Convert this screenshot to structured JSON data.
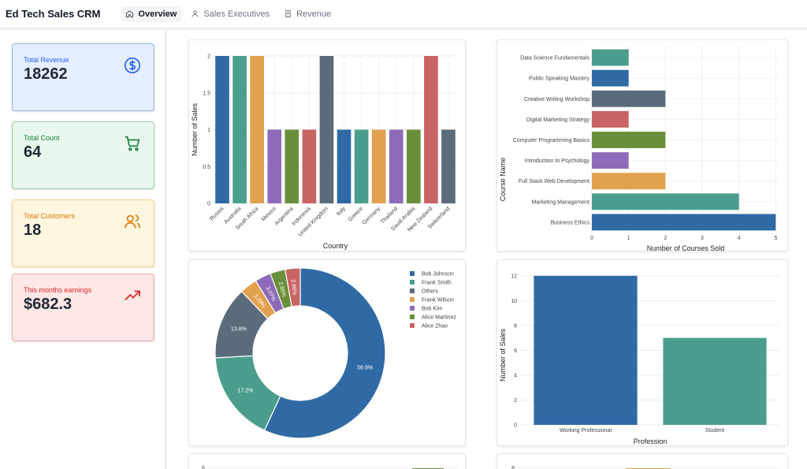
{
  "header": {
    "title": "Ed Tech Sales CRM",
    "tabs": [
      {
        "label": "Overview",
        "icon": "home-icon",
        "active": true
      },
      {
        "label": "Sales Executives",
        "icon": "user-icon",
        "active": false
      },
      {
        "label": "Revenue",
        "icon": "receipt-icon",
        "active": false
      }
    ]
  },
  "kpis": [
    {
      "label": "Total Revenue",
      "value": "18262",
      "icon": "dollar-icon",
      "accent": "#2563eb"
    },
    {
      "label": "Total Count",
      "value": "64",
      "icon": "cart-icon",
      "accent": "#15803d"
    },
    {
      "label": "Total Customers",
      "value": "18",
      "icon": "users-icon",
      "accent": "#d97706"
    },
    {
      "label": "This months earnings",
      "value": "$682.3",
      "icon": "trending-up-icon",
      "accent": "#dc2626"
    }
  ],
  "chart_data": [
    {
      "type": "bar",
      "categories": [
        "Russia",
        "Australia",
        "South Africa",
        "Mexico",
        "Argentina",
        "Indonesia",
        "United Kingdom",
        "Italy",
        "Greece",
        "Germany",
        "Thailand",
        "Saudi Arabia",
        "New Zealand",
        "Switzerland"
      ],
      "values": [
        2,
        2,
        2,
        1,
        1,
        1,
        2,
        1,
        1,
        1,
        1,
        1,
        2,
        1
      ],
      "colors": [
        "#2f6aa5",
        "#4b9e8e",
        "#e2a14f",
        "#8e6bb8",
        "#6a8f3a",
        "#c96464",
        "#5a6b7c",
        "#2f6aa5",
        "#4b9e8e",
        "#e2a14f",
        "#8e6bb8",
        "#6a8f3a",
        "#c96464",
        "#5a6b7c"
      ],
      "xlabel": "Country",
      "ylabel": "Number of Sales",
      "yticks": [
        "0",
        "0.5",
        "1",
        "1.5",
        "2"
      ],
      "ylim": [
        0,
        2
      ]
    },
    {
      "type": "bar",
      "orientation": "horizontal",
      "categories": [
        "Data Science Fundamentals",
        "Public Speaking Mastery",
        "Creative Writing Workshop",
        "Digital Marketing Strategy",
        "Computer Programming Basics",
        "Introduction to Psychology",
        "Full Stack Web Development",
        "Marketing Management",
        "Business Ethics"
      ],
      "values": [
        1,
        1,
        2,
        1,
        2,
        1,
        2,
        4,
        5
      ],
      "colors": [
        "#4b9e8e",
        "#2f6aa5",
        "#5a6b7c",
        "#c96464",
        "#6a8f3a",
        "#8e6bb8",
        "#e2a14f",
        "#4b9e8e",
        "#2f6aa5"
      ],
      "xlabel": "Number of Courses Sold",
      "ylabel": "Course Name",
      "xticks": [
        "0",
        "1",
        "2",
        "3",
        "4",
        "5"
      ],
      "xlim": [
        0,
        5.1
      ]
    },
    {
      "type": "pie",
      "hole": true,
      "labels": [
        "Bob Johnson",
        "Frank Smith",
        "Others",
        "Frank Wilson",
        "Bob Kim",
        "Alice Martinez",
        "Alice Zhao"
      ],
      "values": [
        56.9,
        17.2,
        13.8,
        3.29,
        3.07,
        2.86,
        2.86
      ],
      "display": [
        "56.9%",
        "17.2%",
        "13.8%",
        "3.29%",
        "3.07%",
        "2.86%",
        "2.86%"
      ],
      "colors": [
        "#2f6aa5",
        "#4b9e8e",
        "#5a6b7c",
        "#e2a14f",
        "#8e6bb8",
        "#6a8f3a",
        "#c96464"
      ],
      "legend": "right"
    },
    {
      "type": "bar",
      "categories": [
        "Working Professional",
        "Student"
      ],
      "values": [
        12,
        7
      ],
      "colors": [
        "#2f6aa5",
        "#4b9e8e"
      ],
      "xlabel": "Profession",
      "ylabel": "Number of Sales",
      "yticks": [
        "0",
        "2",
        "4",
        "6",
        "8",
        "10",
        "12"
      ],
      "ylim": [
        0,
        12.5
      ]
    },
    {
      "type": "bar",
      "partial": true,
      "yticks": [
        "6"
      ],
      "colors": [
        "#6a8f3a"
      ]
    },
    {
      "type": "bar",
      "partial": true,
      "yticks": [
        "8"
      ],
      "colors": [
        "#e2a14f"
      ]
    }
  ]
}
